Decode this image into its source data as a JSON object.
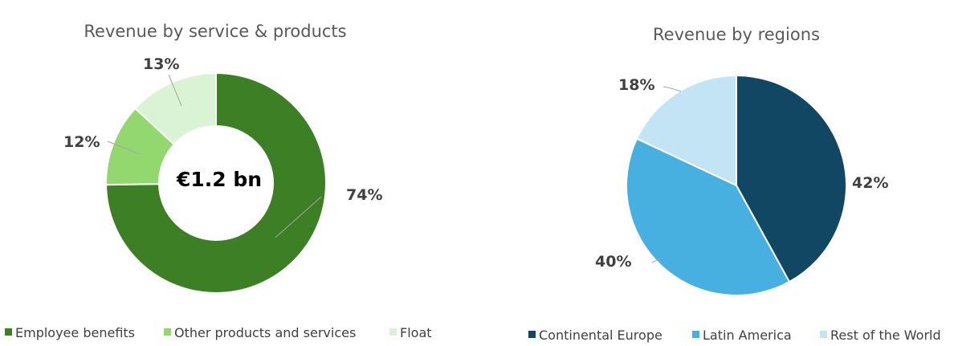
{
  "chart_data": [
    {
      "type": "pie",
      "variant": "donut",
      "title": "Revenue by service & products",
      "center_label": "€1.2 bn",
      "categories": [
        "Employee benefits",
        "Other products and services",
        "Float"
      ],
      "values": [
        74,
        12,
        13
      ],
      "data_labels": [
        "74%",
        "12%",
        "13%"
      ],
      "colors": [
        "#3c7f25",
        "#92d86f",
        "#dbf3d5"
      ],
      "legend_position": "bottom"
    },
    {
      "type": "pie",
      "title": "Revenue by regions",
      "categories": [
        "Continental Europe",
        "Latin America",
        "Rest of the World"
      ],
      "values": [
        42,
        40,
        18
      ],
      "data_labels": [
        "42%",
        "40%",
        "18%"
      ],
      "colors": [
        "#114763",
        "#48b0e0",
        "#c2e4f4"
      ],
      "legend_position": "bottom"
    }
  ]
}
